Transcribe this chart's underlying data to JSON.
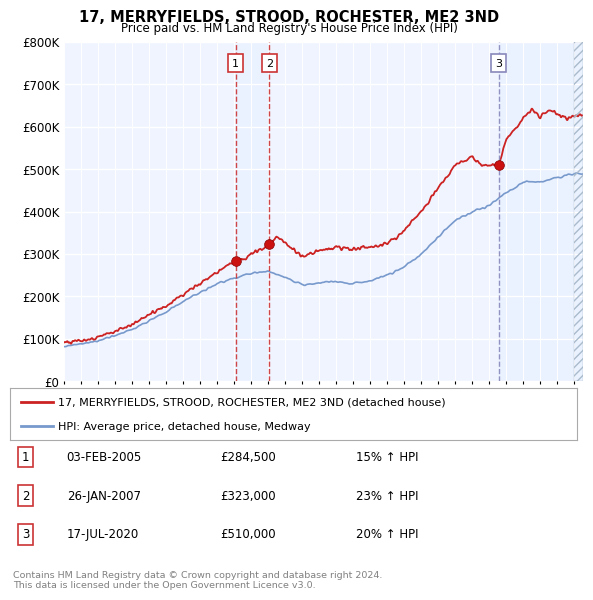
{
  "title": "17, MERRYFIELDS, STROOD, ROCHESTER, ME2 3ND",
  "subtitle": "Price paid vs. HM Land Registry's House Price Index (HPI)",
  "ylabel_ticks": [
    "£0",
    "£100K",
    "£200K",
    "£300K",
    "£400K",
    "£500K",
    "£600K",
    "£700K",
    "£800K"
  ],
  "ytick_values": [
    0,
    100000,
    200000,
    300000,
    400000,
    500000,
    600000,
    700000,
    800000
  ],
  "ylim": [
    0,
    800000
  ],
  "xlim_start": 1995.0,
  "xlim_end": 2025.5,
  "sale_dates_num": [
    2005.08,
    2007.07,
    2020.54
  ],
  "sale_prices": [
    284500,
    323000,
    510000
  ],
  "sale_labels": [
    "1",
    "2",
    "3"
  ],
  "vline_color_red": "#cc3333",
  "vline_color_blue": "#8888bb",
  "red_line_color": "#cc2222",
  "blue_line_color": "#7799cc",
  "shade_color": "#ddeeff",
  "legend_label_red": "17, MERRYFIELDS, STROOD, ROCHESTER, ME2 3ND (detached house)",
  "legend_label_blue": "HPI: Average price, detached house, Medway",
  "table_rows": [
    [
      "1",
      "03-FEB-2005",
      "£284,500",
      "15% ↑ HPI"
    ],
    [
      "2",
      "26-JAN-2007",
      "£323,000",
      "23% ↑ HPI"
    ],
    [
      "3",
      "17-JUL-2020",
      "£510,000",
      "20% ↑ HPI"
    ]
  ],
  "footnote": "Contains HM Land Registry data © Crown copyright and database right 2024.\nThis data is licensed under the Open Government Licence v3.0.",
  "chart_bg": "#f0f4ff",
  "fig_bg": "#ffffff",
  "hpi_knots_x": [
    1995,
    1996,
    1997,
    1998,
    1999,
    2000,
    2001,
    2002,
    2003,
    2004,
    2005,
    2006,
    2007,
    2008,
    2009,
    2010,
    2011,
    2012,
    2013,
    2014,
    2015,
    2016,
    2017,
    2018,
    2019,
    2020,
    2021,
    2022,
    2023,
    2024,
    2025
  ],
  "hpi_knots_y": [
    82000,
    88000,
    96000,
    108000,
    122000,
    143000,
    163000,
    188000,
    210000,
    230000,
    243000,
    255000,
    260000,
    245000,
    228000,
    232000,
    235000,
    230000,
    238000,
    250000,
    270000,
    300000,
    340000,
    380000,
    400000,
    415000,
    445000,
    470000,
    470000,
    480000,
    490000
  ],
  "prop_knots_x": [
    1995,
    1996,
    1997,
    1998,
    1999,
    2000,
    2001,
    2002,
    2003,
    2004,
    2005.08,
    2005.5,
    2006,
    2007.07,
    2007.5,
    2008,
    2008.5,
    2009,
    2009.5,
    2010,
    2011,
    2012,
    2013,
    2014,
    2015,
    2016,
    2017,
    2018,
    2019,
    2019.5,
    2020.54,
    2021,
    2021.5,
    2022,
    2022.5,
    2023,
    2023.5,
    2024,
    2024.5,
    2025
  ],
  "prop_knots_y": [
    92000,
    97000,
    104000,
    118000,
    135000,
    158000,
    178000,
    205000,
    232000,
    260000,
    284500,
    286000,
    300000,
    323000,
    340000,
    325000,
    310000,
    295000,
    300000,
    310000,
    315000,
    310000,
    318000,
    325000,
    355000,
    400000,
    455000,
    510000,
    530000,
    510000,
    510000,
    570000,
    595000,
    620000,
    640000,
    625000,
    640000,
    630000,
    620000,
    625000
  ]
}
